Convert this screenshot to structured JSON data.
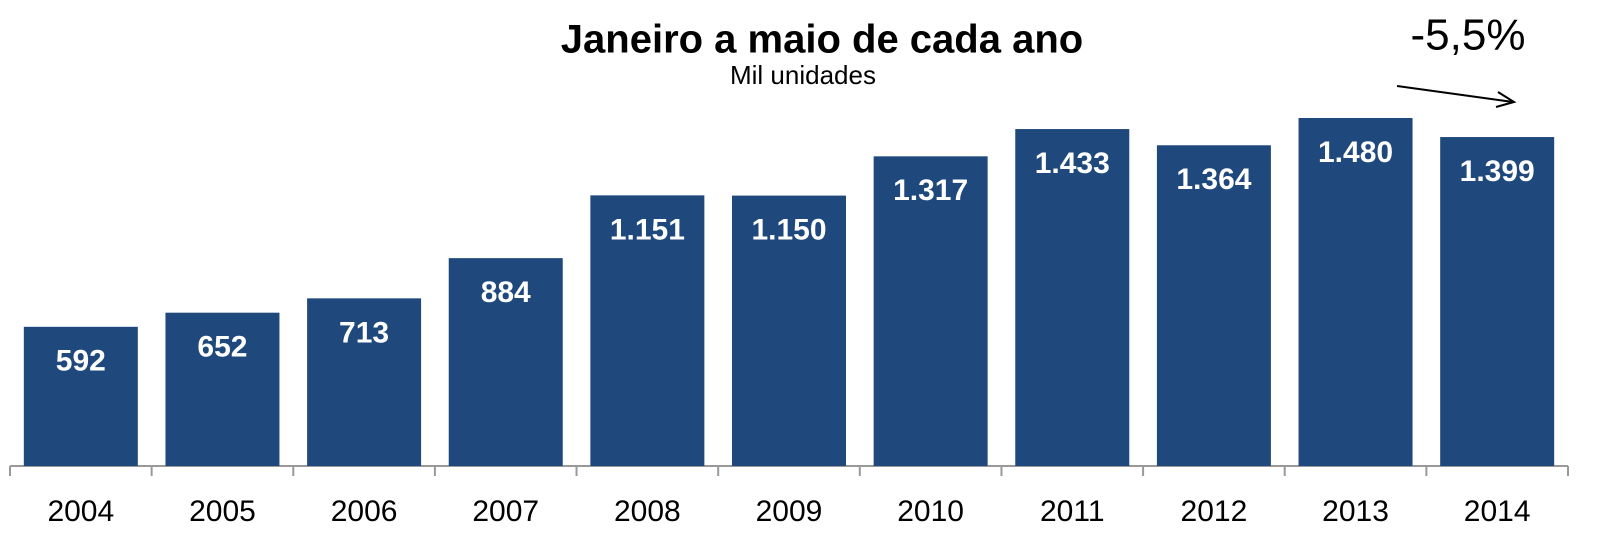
{
  "chart_data": {
    "type": "bar",
    "title": "Janeiro a maio de cada ano",
    "subtitle": "Mil unidades",
    "annotation": "-5,5%",
    "categories": [
      "2004",
      "2005",
      "2006",
      "2007",
      "2008",
      "2009",
      "2010",
      "2011",
      "2012",
      "2013",
      "2014"
    ],
    "values": [
      592,
      652,
      713,
      884,
      1151,
      1150,
      1317,
      1433,
      1364,
      1480,
      1399
    ],
    "value_labels": [
      "592",
      "652",
      "713",
      "884",
      "1.151",
      "1.150",
      "1.317",
      "1.433",
      "1.364",
      "1.480",
      "1.399"
    ],
    "color": "#1f497d"
  }
}
